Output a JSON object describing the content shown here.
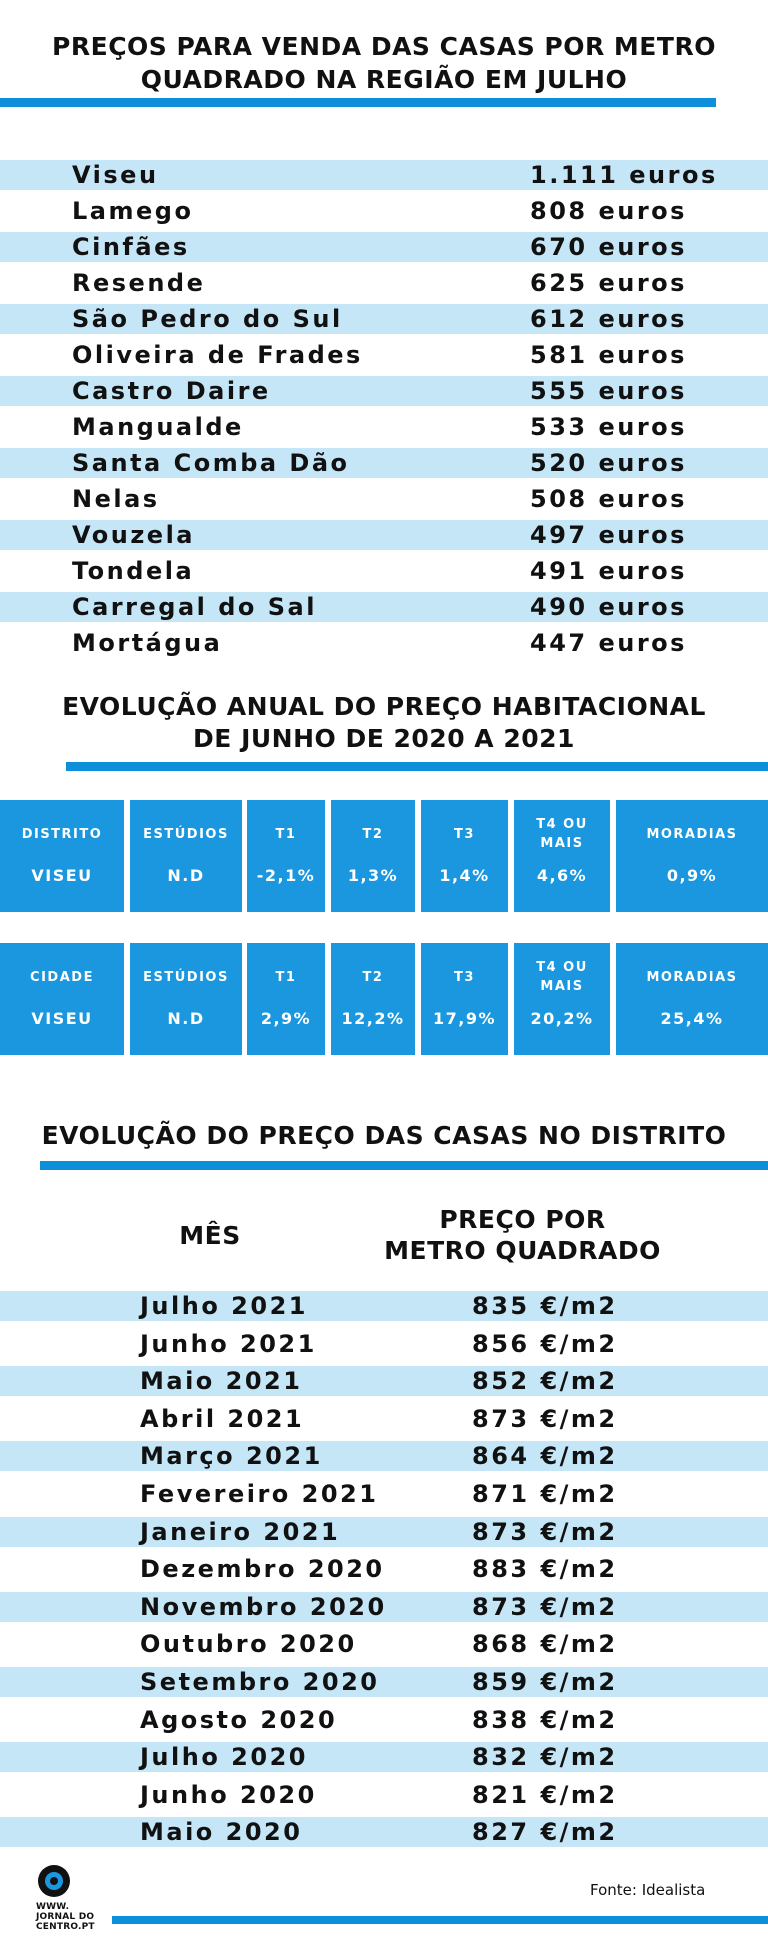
{
  "section1": {
    "title_line1": "PREÇOS PARA VENDA DAS CASAS POR METRO",
    "title_line2": "QUADRADO NA REGIÃO EM JULHO",
    "rows": [
      {
        "name": "Viseu",
        "price": "1.111 euros"
      },
      {
        "name": "Lamego",
        "price": "808 euros"
      },
      {
        "name": "Cinfães",
        "price": "670 euros"
      },
      {
        "name": "Resende",
        "price": "625 euros"
      },
      {
        "name": "São Pedro do Sul",
        "price": "612 euros"
      },
      {
        "name": "Oliveira de Frades",
        "price": "581 euros"
      },
      {
        "name": "Castro Daire",
        "price": "555 euros"
      },
      {
        "name": "Mangualde",
        "price": "533 euros"
      },
      {
        "name": "Santa Comba Dão",
        "price": "520 euros"
      },
      {
        "name": "Nelas",
        "price": "508 euros"
      },
      {
        "name": "Vouzela",
        "price": "497 euros"
      },
      {
        "name": "Tondela",
        "price": "491 euros"
      },
      {
        "name": "Carregal do Sal",
        "price": "490 euros"
      },
      {
        "name": "Mortágua",
        "price": "447 euros"
      }
    ]
  },
  "section2": {
    "title_line1": "EVOLUÇÃO ANUAL DO PREÇO HABITACIONAL",
    "title_line2": "DE JUNHO DE 2020 A 2021",
    "tables": [
      {
        "cells": [
          {
            "h1": "DISTRITO",
            "h2": "",
            "v": "VISEU"
          },
          {
            "h1": "ESTÚDIOS",
            "h2": "",
            "v": "N.D"
          },
          {
            "h1": "T1",
            "h2": "",
            "v": "-2,1%"
          },
          {
            "h1": "T2",
            "h2": "",
            "v": "1,3%"
          },
          {
            "h1": "T3",
            "h2": "",
            "v": "1,4%"
          },
          {
            "h1": "T4 OU",
            "h2": "MAIS",
            "v": "4,6%"
          },
          {
            "h1": "MORADIAS",
            "h2": "",
            "v": "0,9%"
          }
        ]
      },
      {
        "cells": [
          {
            "h1": "CIDADE",
            "h2": "",
            "v": "VISEU"
          },
          {
            "h1": "ESTÚDIOS",
            "h2": "",
            "v": "N.D"
          },
          {
            "h1": "T1",
            "h2": "",
            "v": "2,9%"
          },
          {
            "h1": "T2",
            "h2": "",
            "v": "12,2%"
          },
          {
            "h1": "T3",
            "h2": "",
            "v": "17,9%"
          },
          {
            "h1": "T4 OU",
            "h2": "MAIS",
            "v": "20,2%"
          },
          {
            "h1": "MORADIAS",
            "h2": "",
            "v": "25,4%"
          }
        ]
      }
    ]
  },
  "section3": {
    "title": "EVOLUÇÃO DO PREÇO DAS CASAS NO DISTRITO",
    "header_month": "MÊS",
    "header_price_line1": "PREÇO POR",
    "header_price_line2": "METRO QUADRADO",
    "rows": [
      {
        "month": "Julho 2021",
        "price": "835 €/m2"
      },
      {
        "month": "Junho 2021",
        "price": "856 €/m2"
      },
      {
        "month": "Maio 2021",
        "price": "852 €/m2"
      },
      {
        "month": "Abril 2021",
        "price": "873 €/m2"
      },
      {
        "month": "Março 2021",
        "price": "864 €/m2"
      },
      {
        "month": "Fevereiro 2021",
        "price": "871 €/m2"
      },
      {
        "month": "Janeiro 2021",
        "price": "873 €/m2"
      },
      {
        "month": "Dezembro 2020",
        "price": "883 €/m2"
      },
      {
        "month": "Novembro 2020",
        "price": "873 €/m2"
      },
      {
        "month": "Outubro 2020",
        "price": "868 €/m2"
      },
      {
        "month": "Setembro 2020",
        "price": "859 €/m2"
      },
      {
        "month": "Agosto 2020",
        "price": "838 €/m2"
      },
      {
        "month": "Julho 2020",
        "price": "832 €/m2"
      },
      {
        "month": "Junho 2020",
        "price": "821 €/m2"
      },
      {
        "month": "Maio 2020",
        "price": "827 €/m2"
      }
    ]
  },
  "footer": {
    "logo_line1": "WWW.",
    "logo_line2": "JORNAL DO",
    "logo_line3": "CENTRO.PT",
    "source": "Fonte: Idealista"
  },
  "colors": {
    "accent": "#0d8fd9",
    "box": "#1a97df",
    "row_shade": "#c4e6f7"
  }
}
